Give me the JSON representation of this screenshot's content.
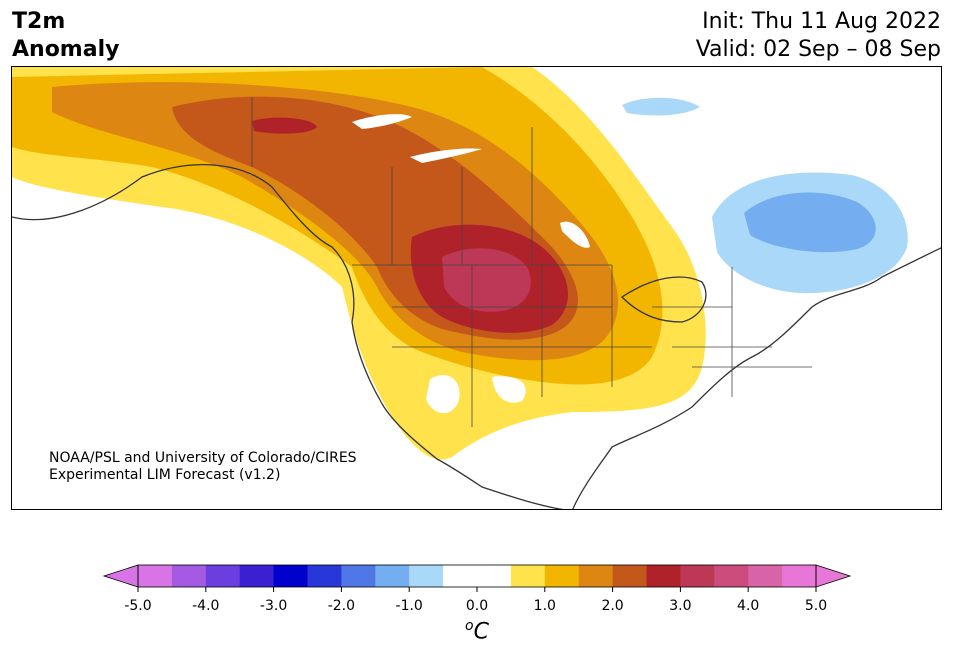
{
  "title": {
    "line1": "T2m",
    "line2": "Anomaly"
  },
  "dates": {
    "init": "Init: Thu 11 Aug 2022",
    "valid": "Valid: 02 Sep – 08 Sep"
  },
  "credit": {
    "line1": "NOAA/PSL and University of Colorado/CIRES",
    "line2": "Experimental LIM Forecast (v1.2)"
  },
  "colorbar": {
    "unit_symbol": "o",
    "unit_letter": "C",
    "tick_labels": [
      "-5.0",
      "-4.0",
      "-3.0",
      "-2.0",
      "-1.0",
      "0.0",
      "1.0",
      "2.0",
      "3.0",
      "4.0",
      "5.0"
    ],
    "min": -5.0,
    "max": 5.0,
    "step": 0.5,
    "colors": [
      "#d874e6",
      "#a45ae2",
      "#6c3ee0",
      "#3a20d2",
      "#0000cc",
      "#2838d8",
      "#4f77e6",
      "#74aef0",
      "#a9d8f8",
      "#ffffff",
      "#ffffff",
      "#ffe24c",
      "#f2b600",
      "#dd8712",
      "#c4581b",
      "#b0222a",
      "#bd3756",
      "#cc4c7e",
      "#d863a6",
      "#e876d6"
    ],
    "under_color": "#d874e6",
    "over_color": "#e876d6"
  }
}
